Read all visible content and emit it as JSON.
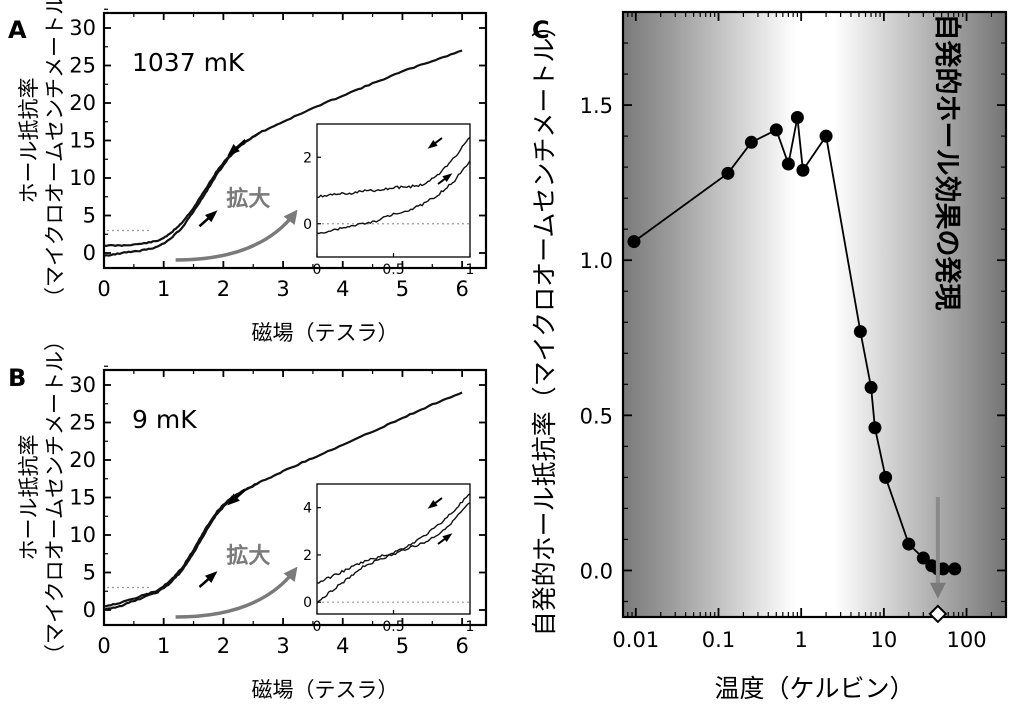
{
  "chart_data": [
    {
      "panel": "A",
      "type": "line",
      "temperature_label": "1037 mK",
      "xlabel": "磁場（テスラ）",
      "ylabel_line1": "ホール抵抗率",
      "ylabel_line2": "（マイクロオームセンチメートル）",
      "xlim": [
        0,
        6.4
      ],
      "ylim": [
        -2,
        32
      ],
      "xticks": [
        "0",
        "1",
        "2",
        "3",
        "4",
        "5",
        "6"
      ],
      "yticks": [
        "0",
        "5",
        "10",
        "15",
        "20",
        "25",
        "30"
      ],
      "zoom_label": "拡大",
      "series": [
        {
          "x": [
            0,
            0.3,
            0.6,
            0.9,
            1.1,
            1.3,
            1.5,
            1.7,
            1.9,
            2.1,
            2.3,
            2.6,
            3.0,
            3.5,
            4.0,
            4.5,
            5.0,
            5.5,
            6.0
          ],
          "y": [
            1.0,
            1.0,
            1.2,
            1.6,
            2.5,
            4.0,
            6.0,
            8.5,
            11.0,
            13.0,
            14.5,
            16.0,
            17.5,
            19.3,
            21.0,
            22.6,
            24.2,
            25.6,
            27.0
          ]
        },
        {
          "x": [
            0,
            0.3,
            0.6,
            0.9,
            1.1,
            1.3,
            1.5,
            1.7,
            1.9,
            2.1,
            2.3,
            2.6
          ],
          "y": [
            -0.4,
            0.0,
            0.3,
            0.8,
            1.8,
            3.3,
            5.5,
            8.0,
            10.6,
            12.8,
            14.4,
            16.0
          ]
        }
      ],
      "inset": {
        "xlim": [
          0,
          1
        ],
        "ylim": [
          -1,
          3
        ],
        "xticks": [
          "0",
          "0.5",
          "1"
        ],
        "yticks": [
          "0",
          "2"
        ],
        "series": [
          {
            "x": [
              0,
              0.1,
              0.2,
              0.3,
              0.4,
              0.5,
              0.6,
              0.7,
              0.8,
              0.9,
              1.0
            ],
            "y": [
              0.8,
              0.9,
              0.9,
              1.0,
              1.0,
              1.1,
              1.1,
              1.2,
              1.5,
              2.0,
              2.6
            ]
          },
          {
            "x": [
              0,
              0.1,
              0.2,
              0.3,
              0.4,
              0.5,
              0.6,
              0.7,
              0.8,
              0.9,
              1.0
            ],
            "y": [
              -0.3,
              -0.2,
              -0.1,
              0.0,
              0.1,
              0.3,
              0.4,
              0.6,
              0.9,
              1.3,
              1.9
            ]
          }
        ]
      }
    },
    {
      "panel": "B",
      "type": "line",
      "temperature_label": "9 mK",
      "xlabel": "磁場（テスラ）",
      "ylabel_line1": "ホール抵抗率",
      "ylabel_line2": "（マイクロオームセンチメートル）",
      "xlim": [
        0,
        6.4
      ],
      "ylim": [
        -2,
        32
      ],
      "xticks": [
        "0",
        "1",
        "2",
        "3",
        "4",
        "5",
        "6"
      ],
      "yticks": [
        "0",
        "5",
        "10",
        "15",
        "20",
        "25",
        "30"
      ],
      "zoom_label": "拡大",
      "series": [
        {
          "x": [
            0,
            0.3,
            0.6,
            0.9,
            1.1,
            1.3,
            1.5,
            1.7,
            1.9,
            2.1,
            2.3,
            2.6,
            3.0,
            3.5,
            4.0,
            4.5,
            5.0,
            5.5,
            6.0
          ],
          "y": [
            0.5,
            1.0,
            1.8,
            2.6,
            3.8,
            5.5,
            8.0,
            10.8,
            13.2,
            14.8,
            15.8,
            17.0,
            18.5,
            20.3,
            22.0,
            23.8,
            25.6,
            27.4,
            29.0
          ]
        },
        {
          "x": [
            0,
            0.3,
            0.6,
            0.9,
            1.1,
            1.3,
            1.5,
            1.7,
            1.9,
            2.1,
            2.3,
            2.6
          ],
          "y": [
            0.0,
            0.6,
            1.5,
            2.4,
            3.5,
            5.2,
            7.6,
            10.4,
            12.9,
            14.6,
            15.7,
            17.0
          ]
        }
      ],
      "inset": {
        "xlim": [
          0,
          1
        ],
        "ylim": [
          -0.5,
          5
        ],
        "xticks": [
          "0",
          "0.5",
          "1"
        ],
        "yticks": [
          "0",
          "2",
          "4"
        ],
        "series": [
          {
            "x": [
              0,
              0.1,
              0.2,
              0.3,
              0.4,
              0.5,
              0.6,
              0.7,
              0.8,
              0.9,
              1.0
            ],
            "y": [
              0.8,
              1.1,
              1.4,
              1.7,
              1.9,
              2.1,
              2.4,
              2.8,
              3.3,
              3.9,
              4.6
            ]
          },
          {
            "x": [
              0,
              0.1,
              0.2,
              0.3,
              0.4,
              0.5,
              0.6,
              0.7,
              0.8,
              0.9,
              1.0
            ],
            "y": [
              0.0,
              0.5,
              1.0,
              1.5,
              1.8,
              2.0,
              2.3,
              2.5,
              2.9,
              3.5,
              4.2
            ]
          }
        ]
      }
    },
    {
      "panel": "C",
      "type": "scatter",
      "xlabel": "温度（ケルビン）",
      "ylabel": "自発的ホール抵抗率（マイクロオームセンチメートル）",
      "xscale": "log",
      "xlim": [
        0.007,
        300
      ],
      "ylim": [
        -0.15,
        1.8
      ],
      "xticks": [
        {
          "value": 0.01,
          "label": "0.01"
        },
        {
          "value": 0.1,
          "label": "0.1"
        },
        {
          "value": 1,
          "label": "1"
        },
        {
          "value": 10,
          "label": "10"
        },
        {
          "value": 100,
          "label": "100"
        }
      ],
      "yticks": [
        {
          "value": 0,
          "label": "0.0"
        },
        {
          "value": 0.5,
          "label": "0.5"
        },
        {
          "value": 1.0,
          "label": "1.0"
        },
        {
          "value": 1.5,
          "label": "1.5"
        }
      ],
      "x": [
        0.0095,
        0.13,
        0.25,
        0.5,
        0.7,
        0.9,
        1.05,
        2.0,
        5.2,
        7.0,
        7.8,
        10.5,
        20,
        30,
        38,
        45,
        52,
        72
      ],
      "y": [
        1.06,
        1.28,
        1.38,
        1.42,
        1.31,
        1.46,
        1.29,
        1.4,
        0.77,
        0.59,
        0.46,
        0.3,
        0.085,
        0.04,
        0.015,
        0.005,
        0.005,
        0.005
      ],
      "marker_open": {
        "x": 45,
        "y": -0.14
      },
      "annotation": "自発的ホール効果の発現",
      "background": "grayscale-gradient"
    }
  ]
}
